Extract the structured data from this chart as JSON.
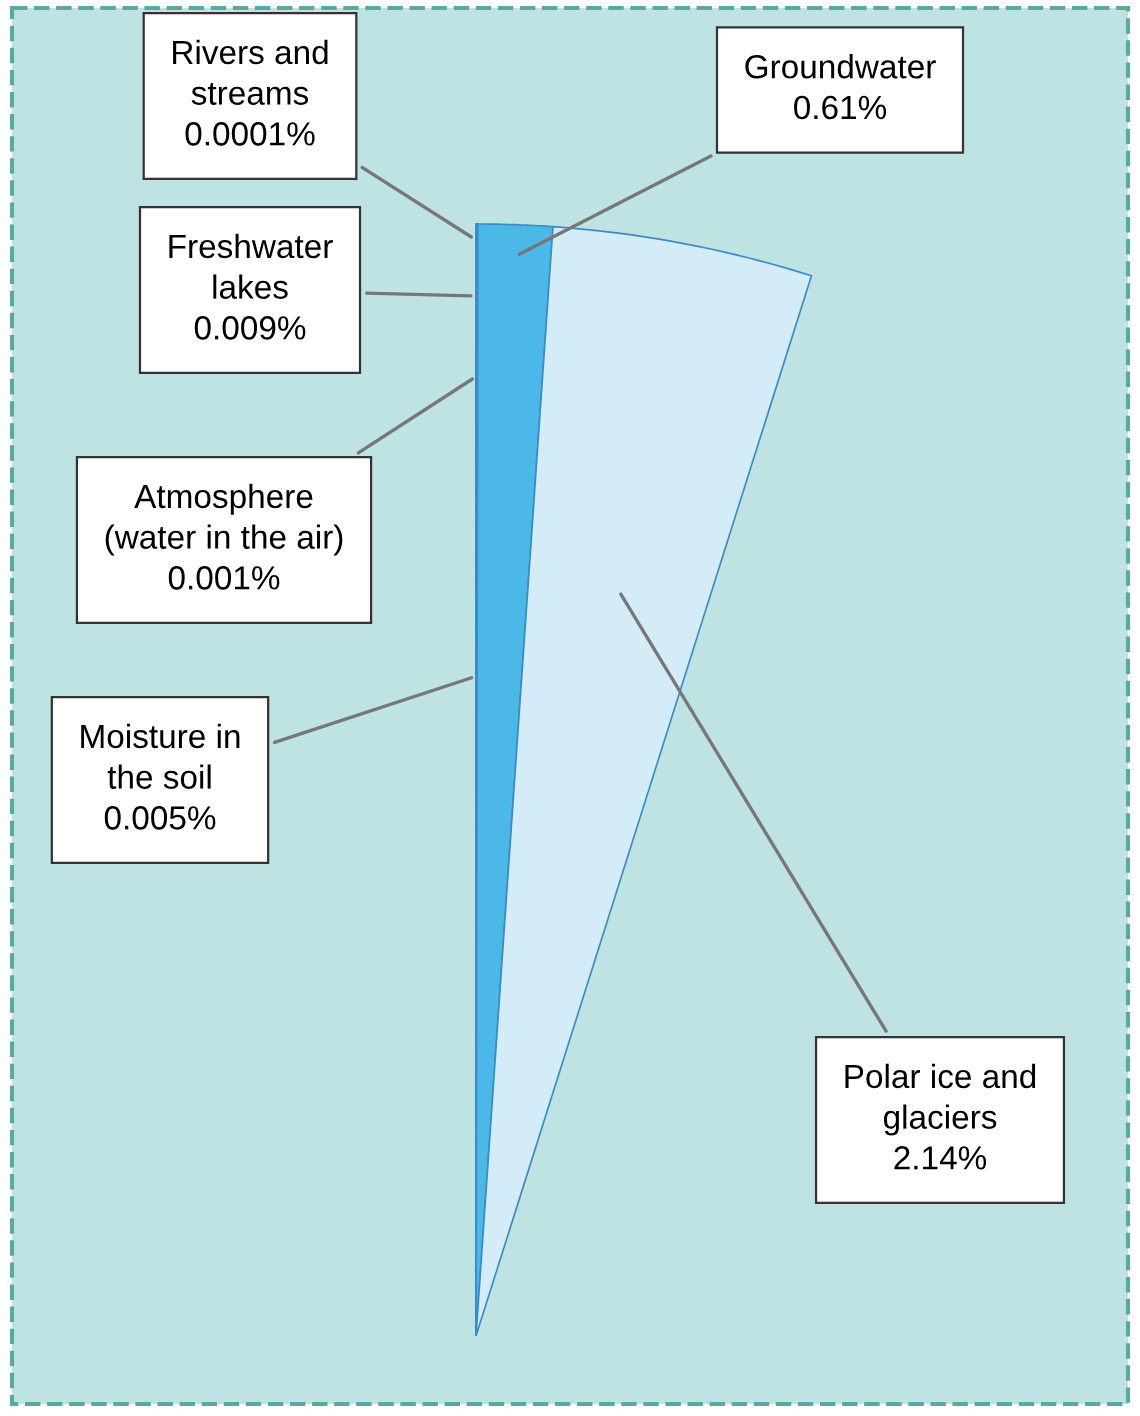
{
  "chart_data": {
    "type": "other",
    "categories": [
      "Rivers and\nstreams",
      "Freshwater\nlakes",
      "Atmosphere\n(water in the air)",
      "Moisture in\nthe soil",
      "Groundwater",
      "Polar ice and\nglaciers"
    ],
    "values": [
      0.0001,
      0.009,
      0.001,
      0.005,
      0.61,
      2.14
    ],
    "value_labels": [
      "0.0001%",
      "0.009%",
      "0.001%",
      "0.005%",
      "0.61%",
      "2.14%"
    ],
    "legend": false
  }
}
